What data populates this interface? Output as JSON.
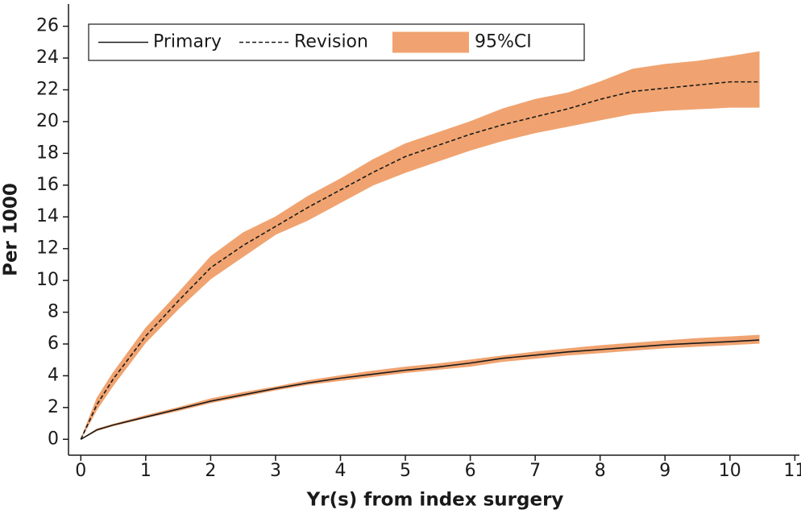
{
  "chart_data": {
    "type": "line",
    "x_label": "Yr(s) from index surgery",
    "y_label": "Per 1000",
    "x": [
      0,
      0.25,
      0.5,
      1,
      1.5,
      2,
      2.5,
      3,
      3.5,
      4,
      4.5,
      5,
      5.5,
      6,
      6.5,
      7,
      7.5,
      8,
      8.5,
      9,
      9.5,
      10,
      10.45
    ],
    "series": [
      {
        "name": "Primary",
        "color": "#1a1a1a",
        "dash": false,
        "values": [
          0,
          0.6,
          0.9,
          1.4,
          1.9,
          2.4,
          2.8,
          3.2,
          3.55,
          3.85,
          4.1,
          4.35,
          4.55,
          4.8,
          5.1,
          5.3,
          5.5,
          5.65,
          5.8,
          5.95,
          6.05,
          6.15,
          6.25
        ],
        "ci_lower": [
          0,
          0.55,
          0.85,
          1.35,
          1.8,
          2.3,
          2.7,
          3.1,
          3.45,
          3.7,
          3.95,
          4.2,
          4.4,
          4.6,
          4.9,
          5.1,
          5.3,
          5.45,
          5.6,
          5.75,
          5.85,
          5.95,
          6.05
        ],
        "ci_upper": [
          0,
          0.65,
          0.95,
          1.5,
          2.0,
          2.55,
          2.95,
          3.3,
          3.7,
          4.0,
          4.3,
          4.55,
          4.75,
          5.0,
          5.25,
          5.5,
          5.7,
          5.9,
          6.05,
          6.2,
          6.35,
          6.45,
          6.55
        ]
      },
      {
        "name": "Revision",
        "color": "#1a1a1a",
        "dash": true,
        "values": [
          0,
          2.2,
          3.8,
          6.5,
          8.7,
          10.8,
          12.2,
          13.4,
          14.6,
          15.7,
          16.8,
          17.8,
          18.5,
          19.2,
          19.8,
          20.3,
          20.8,
          21.4,
          21.9,
          22.1,
          22.3,
          22.5,
          22.5
        ],
        "ci_lower": [
          0,
          1.9,
          3.4,
          6.1,
          8.2,
          10.1,
          11.5,
          12.9,
          13.8,
          14.9,
          16.0,
          16.8,
          17.5,
          18.2,
          18.8,
          19.3,
          19.7,
          20.1,
          20.5,
          20.7,
          20.8,
          20.9,
          20.9
        ],
        "ci_upper": [
          0,
          2.6,
          4.2,
          7.0,
          9.2,
          11.5,
          13.0,
          14.0,
          15.3,
          16.4,
          17.6,
          18.6,
          19.3,
          20.0,
          20.8,
          21.4,
          21.8,
          22.5,
          23.3,
          23.6,
          23.8,
          24.1,
          24.4
        ]
      }
    ],
    "ci_name": "95%CI",
    "ci_color": "#f0a370",
    "legend": "upper left",
    "xlim": [
      -0.19,
      11.07
    ],
    "ylim": [
      -1,
      27.4
    ],
    "xticks": [
      0,
      1,
      2,
      3,
      4,
      5,
      6,
      7,
      8,
      9,
      10,
      11
    ],
    "yticks": [
      0,
      2,
      4,
      6,
      8,
      10,
      12,
      14,
      16,
      18,
      20,
      22,
      24,
      26
    ]
  }
}
